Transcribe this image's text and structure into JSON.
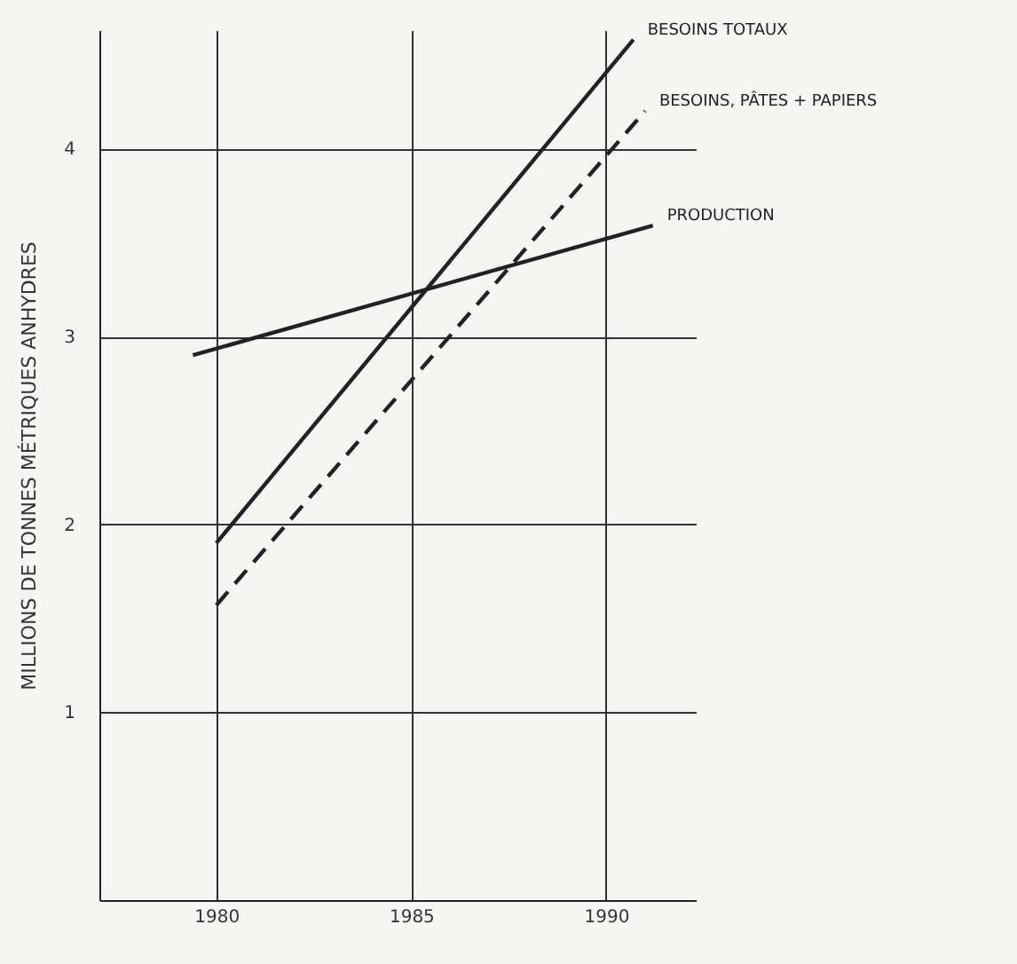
{
  "chart_data": {
    "type": "line",
    "ylabel": "MILLIONS DE TONNES MÉTRIQUES ANHYDRES",
    "xlim": [
      1977,
      1992.3
    ],
    "xticks": [
      1980,
      1985,
      1990
    ],
    "ylim": [
      0,
      4.63
    ],
    "yticks": [
      1,
      2,
      3,
      4
    ],
    "grid": true,
    "legend": false,
    "marker": "none",
    "series": [
      {
        "name": "BESOINS TOTAUX",
        "color": "#222222",
        "x": [
          1980,
          1990.7
        ],
        "values": [
          1.9,
          4.58
        ],
        "line_style": "solid"
      },
      {
        "name": "BESOINS, PÂTES + PAPIERS",
        "color": "#222222",
        "x": [
          1980,
          1991
        ],
        "values": [
          1.57,
          4.2
        ],
        "line_style": "dashed"
      },
      {
        "name": "PRODUCTION",
        "color": "#222222",
        "x": [
          1979.4,
          1991.2
        ],
        "values": [
          2.9,
          3.59
        ],
        "line_style": "solid"
      }
    ]
  }
}
